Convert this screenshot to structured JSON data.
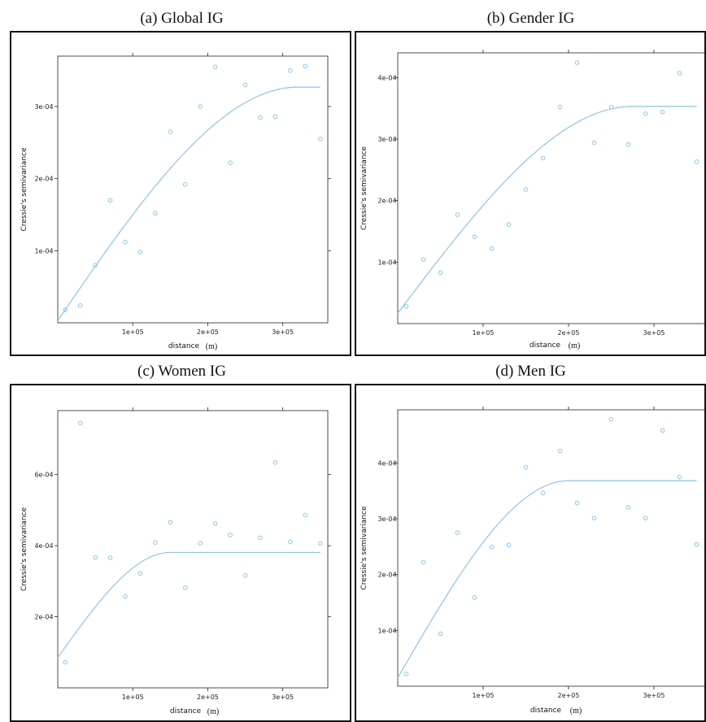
{
  "chart_data": [
    {
      "type": "scatter",
      "title": "(a) Global IG",
      "xlabel": "distance",
      "xunit": "(m)",
      "ylabel": "Cressie's semivariance",
      "xlim": [
        0,
        360000
      ],
      "ylim": [
        0,
        0.00037
      ],
      "xticks": [
        {
          "v": 100000,
          "label": "1e+05"
        },
        {
          "v": 200000,
          "label": "2e+05"
        },
        {
          "v": 300000,
          "label": "3e+05"
        }
      ],
      "yticks": [
        {
          "v": 0.0001,
          "label": "1e-04"
        },
        {
          "v": 0.0002,
          "label": "2e-04"
        },
        {
          "v": 0.0003,
          "label": "3e-04"
        }
      ],
      "points": [
        [
          10000,
          1.8e-05
        ],
        [
          30000,
          2.4e-05
        ],
        [
          50000,
          8e-05
        ],
        [
          70000,
          0.00017
        ],
        [
          90000,
          0.000112
        ],
        [
          110000,
          9.8e-05
        ],
        [
          130000,
          0.000152
        ],
        [
          150000,
          0.000265
        ],
        [
          170000,
          0.000192
        ],
        [
          190000,
          0.0003
        ],
        [
          210000,
          0.000355
        ],
        [
          230000,
          0.000222
        ],
        [
          250000,
          0.00033
        ],
        [
          270000,
          0.000285
        ],
        [
          290000,
          0.000286
        ],
        [
          310000,
          0.00035
        ],
        [
          330000,
          0.000356
        ],
        [
          350000,
          0.000255
        ]
      ],
      "model": {
        "nugget": 3e-06,
        "sill": 0.000327,
        "range": 320000,
        "xmax": 350000
      }
    },
    {
      "type": "scatter",
      "title": "(b) Gender IG",
      "xlabel": "distance",
      "xunit": "(m)",
      "ylabel": "Cressie's semivariance",
      "xlim": [
        0,
        360000
      ],
      "ylim": [
        0,
        0.00044
      ],
      "xticks": [
        {
          "v": 100000,
          "label": "1e+05"
        },
        {
          "v": 200000,
          "label": "2e+05"
        },
        {
          "v": 300000,
          "label": "3e+05"
        }
      ],
      "yticks": [
        {
          "v": 0.0001,
          "label": "1e-04"
        },
        {
          "v": 0.0002,
          "label": "2e-04"
        },
        {
          "v": 0.0003,
          "label": "3e-04"
        },
        {
          "v": 0.0004,
          "label": "4e-04"
        }
      ],
      "points": [
        [
          10000,
          2.8e-05
        ],
        [
          30000,
          0.000104
        ],
        [
          50000,
          8.3e-05
        ],
        [
          70000,
          0.000177
        ],
        [
          90000,
          0.000141
        ],
        [
          110000,
          0.000122
        ],
        [
          130000,
          0.000161
        ],
        [
          150000,
          0.000218
        ],
        [
          170000,
          0.000269
        ],
        [
          190000,
          0.000352
        ],
        [
          210000,
          0.000424
        ],
        [
          230000,
          0.000294
        ],
        [
          250000,
          0.000352
        ],
        [
          270000,
          0.000291
        ],
        [
          290000,
          0.000341
        ],
        [
          310000,
          0.000344
        ],
        [
          330000,
          0.000407
        ],
        [
          350000,
          0.000263
        ]
      ],
      "model": {
        "nugget": 1.7e-05,
        "sill": 0.000353,
        "range": 275000,
        "xmax": 350000
      }
    },
    {
      "type": "scatter",
      "title": "(c) Women IG",
      "xlabel": "distance",
      "xunit": "(m)",
      "ylabel": "Cressie's semivariance",
      "xlim": [
        0,
        360000
      ],
      "ylim": [
        0,
        0.00078
      ],
      "xticks": [
        {
          "v": 100000,
          "label": "1e+05"
        },
        {
          "v": 200000,
          "label": "2e+05"
        },
        {
          "v": 300000,
          "label": "3e+05"
        }
      ],
      "yticks": [
        {
          "v": 0.0002,
          "label": "2e-04"
        },
        {
          "v": 0.0004,
          "label": "4e-04"
        },
        {
          "v": 0.0006,
          "label": "6e-04"
        }
      ],
      "points": [
        [
          10000,
          7.2e-05
        ],
        [
          30000,
          0.000745
        ],
        [
          50000,
          0.000367
        ],
        [
          70000,
          0.000366
        ],
        [
          90000,
          0.000257
        ],
        [
          110000,
          0.000322
        ],
        [
          130000,
          0.000409
        ],
        [
          150000,
          0.000466
        ],
        [
          170000,
          0.000282
        ],
        [
          190000,
          0.000407
        ],
        [
          210000,
          0.000462
        ],
        [
          230000,
          0.00043
        ],
        [
          250000,
          0.000316
        ],
        [
          270000,
          0.000422
        ],
        [
          290000,
          0.000634
        ],
        [
          310000,
          0.000411
        ],
        [
          330000,
          0.000486
        ],
        [
          350000,
          0.000406
        ]
      ],
      "model": {
        "nugget": 8.5e-05,
        "sill": 0.000381,
        "range": 150000,
        "xmax": 350000
      }
    },
    {
      "type": "scatter",
      "title": "(d) Men IG",
      "xlabel": "distance",
      "xunit": "(m)",
      "ylabel": "Cressie's semivariance",
      "xlim": [
        0,
        360000
      ],
      "ylim": [
        0,
        0.000495
      ],
      "xticks": [
        {
          "v": 100000,
          "label": "1e+05"
        },
        {
          "v": 200000,
          "label": "2e+05"
        },
        {
          "v": 300000,
          "label": "3e+05"
        }
      ],
      "yticks": [
        {
          "v": 0.0001,
          "label": "1e-04"
        },
        {
          "v": 0.0002,
          "label": "2e-04"
        },
        {
          "v": 0.0003,
          "label": "3e-04"
        },
        {
          "v": 0.0004,
          "label": "4e-04"
        }
      ],
      "points": [
        [
          10000,
          2.2e-05
        ],
        [
          30000,
          0.000222
        ],
        [
          50000,
          9.4e-05
        ],
        [
          70000,
          0.000275
        ],
        [
          90000,
          0.000159
        ],
        [
          110000,
          0.000249
        ],
        [
          130000,
          0.000253
        ],
        [
          150000,
          0.000392
        ],
        [
          170000,
          0.000346
        ],
        [
          190000,
          0.000421
        ],
        [
          210000,
          0.000328
        ],
        [
          230000,
          0.000301
        ],
        [
          250000,
          0.000478
        ],
        [
          270000,
          0.00032
        ],
        [
          290000,
          0.000301
        ],
        [
          310000,
          0.000458
        ],
        [
          330000,
          0.000375
        ],
        [
          350000,
          0.000254
        ]
      ],
      "model": {
        "nugget": 1.5e-05,
        "sill": 0.000368,
        "range": 200000,
        "xmax": 350000
      }
    }
  ],
  "colors": {
    "series": "#8ec4ea",
    "axis": "#222222",
    "frame": "#111111"
  }
}
